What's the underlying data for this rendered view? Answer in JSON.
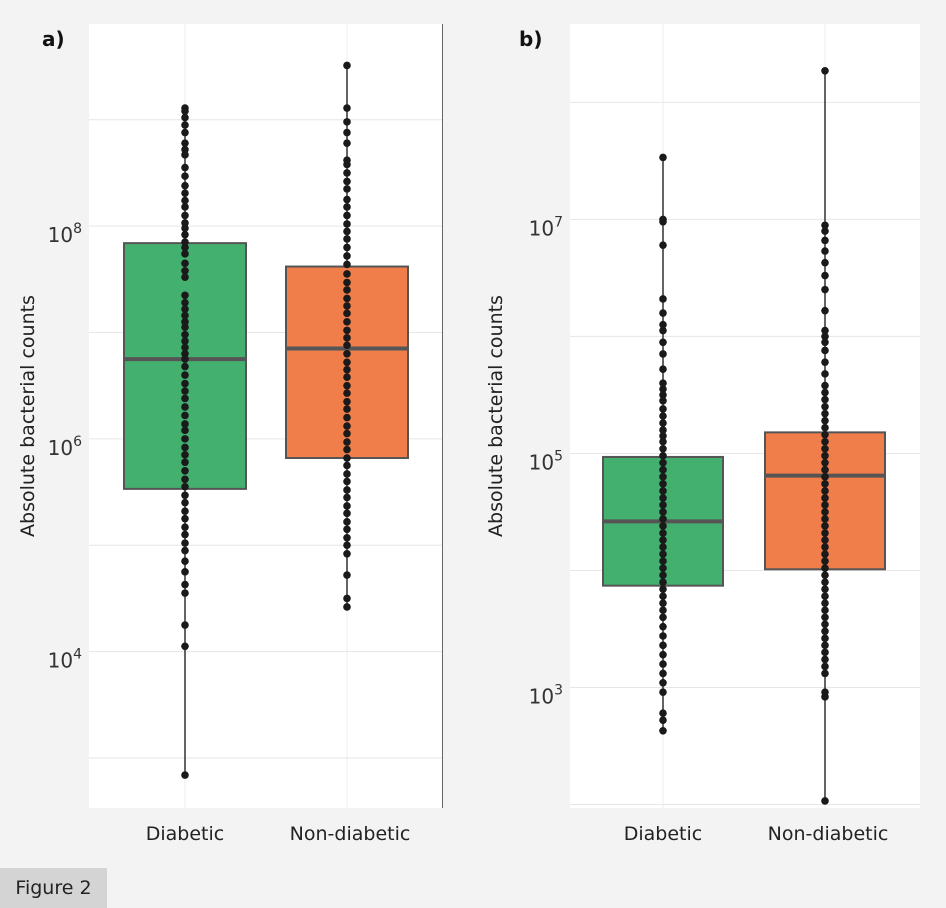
{
  "figure_caption": "Figure 2",
  "chart_data": [
    {
      "type": "boxplot",
      "panel_label": "a)",
      "ylabel": "Absolute bacterial counts",
      "yscale": "log10",
      "ylim_log10": [
        2.53,
        9.9
      ],
      "yticks": [
        {
          "log10": 4,
          "base": "10",
          "exp": "4"
        },
        {
          "log10": 6,
          "base": "10",
          "exp": "6"
        },
        {
          "log10": 8,
          "base": "10",
          "exp": "8"
        }
      ],
      "ygrid_log10": [
        3,
        4,
        5,
        6,
        7,
        8,
        9
      ],
      "categories": [
        "Diabetic",
        "Non-diabetic"
      ],
      "series": [
        {
          "name": "Diabetic",
          "color": "#43b06f",
          "q1_log10": 5.53,
          "median_log10": 6.75,
          "q3_log10": 7.84,
          "whisker_low_log10": 2.84,
          "whisker_high_log10": 9.11,
          "points_log10": [
            9.11,
            9.08,
            9.02,
            8.95,
            8.88,
            8.78,
            8.72,
            8.67,
            8.55,
            8.47,
            8.38,
            8.31,
            8.24,
            8.18,
            8.1,
            8.03,
            7.98,
            7.92,
            7.85,
            7.8,
            7.74,
            7.65,
            7.58,
            7.52,
            7.35,
            7.28,
            7.22,
            7.16,
            7.1,
            7.05,
            6.98,
            6.92,
            6.86,
            6.8,
            6.75,
            6.68,
            6.6,
            6.52,
            6.45,
            6.38,
            6.3,
            6.22,
            6.14,
            6.08,
            6.0,
            5.92,
            5.85,
            5.78,
            5.7,
            5.62,
            5.55,
            5.47,
            5.4,
            5.32,
            5.25,
            5.17,
            5.1,
            5.02,
            4.95,
            4.85,
            4.75,
            4.63,
            4.55,
            4.25,
            4.05,
            2.84
          ]
        },
        {
          "name": "Non-diabetic",
          "color": "#f07e4b",
          "q1_log10": 5.82,
          "median_log10": 6.85,
          "q3_log10": 7.62,
          "whisker_low_log10": 4.42,
          "whisker_high_log10": 9.51,
          "points_log10": [
            9.51,
            9.11,
            8.98,
            8.88,
            8.78,
            8.62,
            8.58,
            8.5,
            8.42,
            8.35,
            8.25,
            8.18,
            8.1,
            8.02,
            7.95,
            7.88,
            7.8,
            7.72,
            7.64,
            7.55,
            7.47,
            7.4,
            7.32,
            7.25,
            7.18,
            7.1,
            7.02,
            6.95,
            6.88,
            6.8,
            6.72,
            6.65,
            6.58,
            6.5,
            6.43,
            6.35,
            6.28,
            6.2,
            6.12,
            6.05,
            5.97,
            5.9,
            5.82,
            5.75,
            5.67,
            5.6,
            5.52,
            5.45,
            5.37,
            5.3,
            5.22,
            5.15,
            5.07,
            5.0,
            4.92,
            4.72,
            4.5,
            4.42
          ]
        }
      ]
    },
    {
      "type": "boxplot",
      "panel_label": "b)",
      "ylabel": "Absolute bacterial counts",
      "yscale": "log10",
      "ylim_log10": [
        1.97,
        8.67
      ],
      "yticks": [
        {
          "log10": 3,
          "base": "10",
          "exp": "3"
        },
        {
          "log10": 5,
          "base": "10",
          "exp": "5"
        },
        {
          "log10": 7,
          "base": "10",
          "exp": "7"
        }
      ],
      "ygrid_log10": [
        2,
        3,
        4,
        5,
        6,
        7,
        8
      ],
      "categories": [
        "Diabetic",
        "Non-diabetic"
      ],
      "series": [
        {
          "name": "Diabetic",
          "color": "#43b06f",
          "q1_log10": 3.87,
          "median_log10": 4.42,
          "q3_log10": 4.97,
          "whisker_low_log10": 2.63,
          "whisker_high_log10": 7.53,
          "points_log10": [
            7.53,
            7.0,
            6.98,
            6.78,
            6.32,
            6.2,
            6.1,
            6.05,
            5.95,
            5.85,
            5.72,
            5.6,
            5.55,
            5.5,
            5.45,
            5.38,
            5.32,
            5.26,
            5.2,
            5.15,
            5.1,
            5.04,
            4.98,
            4.92,
            4.86,
            4.8,
            4.74,
            4.68,
            4.62,
            4.56,
            4.5,
            4.44,
            4.38,
            4.32,
            4.26,
            4.2,
            4.14,
            4.08,
            4.02,
            3.96,
            3.9,
            3.84,
            3.78,
            3.72,
            3.66,
            3.6,
            3.52,
            3.44,
            3.36,
            3.28,
            3.2,
            3.12,
            3.04,
            2.96,
            2.78,
            2.72,
            2.63
          ]
        },
        {
          "name": "Non-diabetic",
          "color": "#f07e4b",
          "q1_log10": 4.01,
          "median_log10": 4.81,
          "q3_log10": 5.18,
          "whisker_low_log10": 2.03,
          "whisker_high_log10": 8.27,
          "points_log10": [
            8.27,
            6.95,
            6.9,
            6.82,
            6.73,
            6.63,
            6.52,
            6.4,
            6.22,
            6.05,
            6.0,
            5.95,
            5.88,
            5.78,
            5.68,
            5.58,
            5.52,
            5.46,
            5.4,
            5.34,
            5.28,
            5.22,
            5.16,
            5.1,
            5.04,
            4.98,
            4.92,
            4.86,
            4.8,
            4.74,
            4.68,
            4.62,
            4.56,
            4.5,
            4.44,
            4.38,
            4.32,
            4.26,
            4.2,
            4.14,
            4.08,
            4.02,
            3.96,
            3.9,
            3.84,
            3.78,
            3.72,
            3.66,
            3.6,
            3.54,
            3.48,
            3.42,
            3.36,
            3.3,
            3.24,
            3.18,
            3.12,
            2.96,
            2.92,
            2.03
          ]
        }
      ]
    }
  ]
}
